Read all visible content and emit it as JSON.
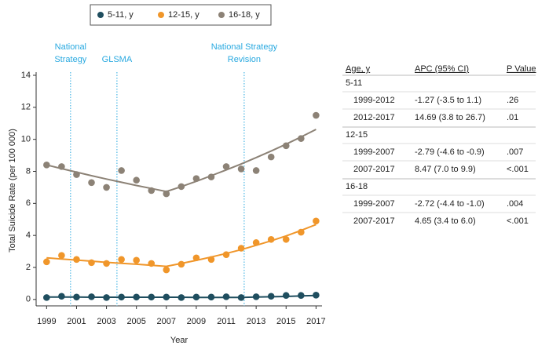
{
  "chart_data": {
    "type": "scatter",
    "x_label": "Year",
    "y_label": "Total Suicide Rate (per 100 000)",
    "x": [
      1999,
      2000,
      2001,
      2002,
      2003,
      2004,
      2005,
      2006,
      2007,
      2008,
      2009,
      2010,
      2011,
      2012,
      2013,
      2014,
      2015,
      2016,
      2017
    ],
    "series": [
      {
        "name": "5-11, y",
        "color": "#1f4e5f",
        "values": [
          0.12,
          0.2,
          0.15,
          0.17,
          0.12,
          0.15,
          0.15,
          0.15,
          0.15,
          0.12,
          0.15,
          0.15,
          0.17,
          0.12,
          0.17,
          0.2,
          0.25,
          0.25,
          0.27
        ],
        "fit": [
          0.15,
          0.15,
          0.15,
          0.14,
          0.14,
          0.14,
          0.14,
          0.14,
          0.14,
          0.14,
          0.13,
          0.13,
          0.13,
          0.13,
          0.15,
          0.17,
          0.19,
          0.22,
          0.25
        ]
      },
      {
        "name": "12-15, y",
        "color": "#f0962a",
        "values": [
          2.35,
          2.75,
          2.5,
          2.3,
          2.25,
          2.5,
          2.45,
          2.25,
          1.85,
          2.2,
          2.6,
          2.5,
          2.8,
          3.2,
          3.55,
          3.75,
          3.75,
          4.2,
          4.9
        ],
        "fit": [
          2.6,
          2.53,
          2.46,
          2.39,
          2.32,
          2.26,
          2.2,
          2.13,
          2.07,
          2.25,
          2.44,
          2.65,
          2.87,
          3.11,
          3.38,
          3.66,
          3.97,
          4.31,
          4.68
        ]
      },
      {
        "name": "16-18, y",
        "color": "#8c8276",
        "values": [
          8.4,
          8.3,
          7.8,
          7.3,
          7.0,
          8.05,
          7.45,
          6.8,
          6.6,
          7.05,
          7.55,
          7.65,
          8.3,
          8.15,
          8.05,
          8.9,
          9.6,
          10.05,
          11.5
        ],
        "fit": [
          8.4,
          8.17,
          7.95,
          7.73,
          7.52,
          7.32,
          7.12,
          6.93,
          6.74,
          7.05,
          7.38,
          7.73,
          8.09,
          8.46,
          8.86,
          9.27,
          9.7,
          10.15,
          10.62
        ]
      }
    ],
    "xlim": [
      1998.3,
      2017.4
    ],
    "xticks": [
      1999,
      2001,
      2003,
      2005,
      2007,
      2009,
      2011,
      2013,
      2015,
      2017
    ],
    "ylim": [
      -0.4,
      14
    ],
    "yticks": [
      0,
      2,
      4,
      6,
      8,
      10,
      12,
      14
    ],
    "annotations": [
      {
        "x": 2000.6,
        "lines": [
          "National",
          "Strategy"
        ]
      },
      {
        "x": 2003.7,
        "lines": [
          "GLSMA"
        ]
      },
      {
        "x": 2012.2,
        "lines": [
          "National Strategy",
          "Revision"
        ]
      }
    ]
  },
  "table": {
    "header": [
      "Age, y",
      "APC (95% CI)",
      "P Value"
    ],
    "groups": [
      {
        "label": "5-11",
        "rows": [
          [
            "1999-2012",
            "-1.27 (-3.5 to 1.1)",
            ".26"
          ],
          [
            "2012-2017",
            "14.69 (3.8 to 26.7)",
            ".01"
          ]
        ]
      },
      {
        "label": "12-15",
        "rows": [
          [
            "1999-2007",
            "-2.79 (-4.6 to -0.9)",
            ".007"
          ],
          [
            "2007-2017",
            "8.47 (7.0 to 9.9)",
            "<.001"
          ]
        ]
      },
      {
        "label": "16-18",
        "rows": [
          [
            "1999-2007",
            "-2.72 (-4.4 to -1.0)",
            ".004"
          ],
          [
            "2007-2017",
            "4.65 (3.4 to 6.0)",
            "<.001"
          ]
        ]
      }
    ]
  }
}
